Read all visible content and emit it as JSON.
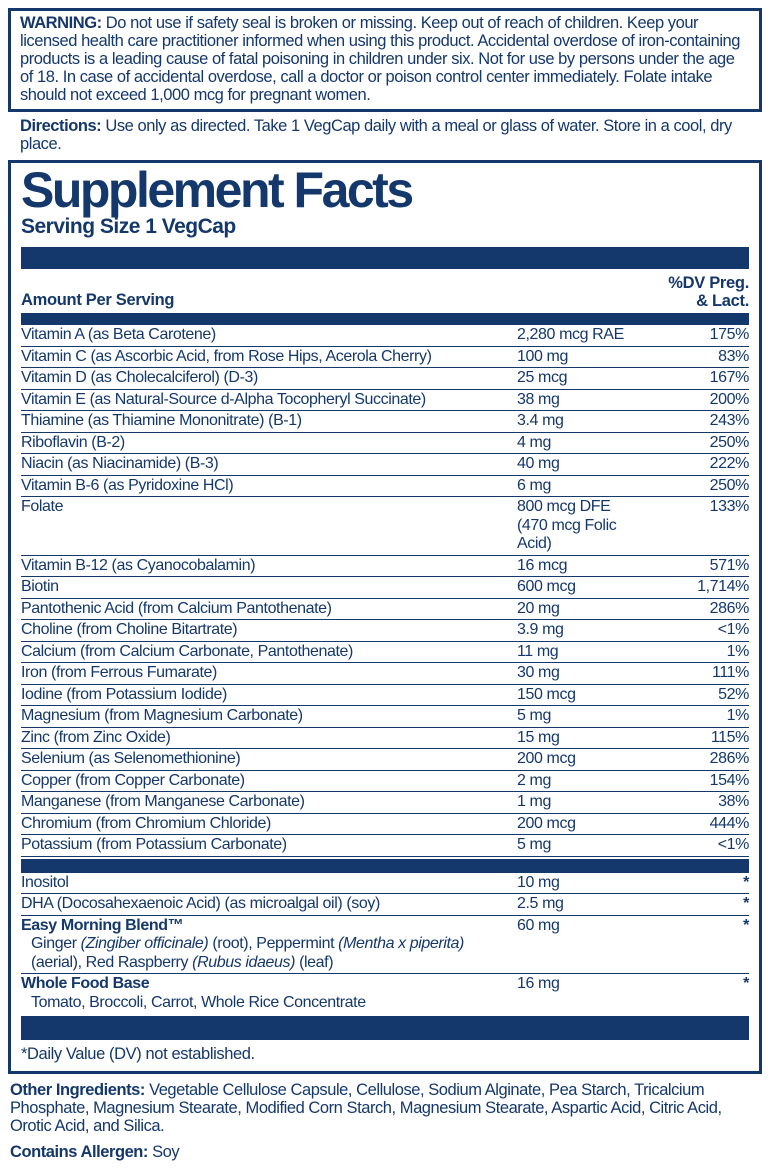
{
  "colors": {
    "navy": "#14386B"
  },
  "warning": {
    "label": "WARNING:",
    "text": "Do not use if safety seal is broken or missing. Keep out of reach of children. Keep your licensed health care practitioner informed when using this product. Accidental overdose of iron-containing products is a leading cause of fatal poisoning in children under six. Not for use by persons under the age of 18. In case of accidental overdose, call a doctor or poison control center immediately. Folate intake should not exceed 1,000 mcg for pregnant women."
  },
  "directions": {
    "label": "Directions:",
    "text": "Use only as directed. Take 1 VegCap daily with a meal or glass of water. Store in a cool, dry place."
  },
  "panel": {
    "title": "Supplement Facts",
    "serving_size": "Serving Size 1 VegCap",
    "amount_header": "Amount Per Serving",
    "dv_header_line1": "%DV Preg.",
    "dv_header_line2": "& Lact.",
    "main_rows": [
      {
        "name": "Vitamin A (as Beta Carotene)",
        "amount": "2,280 mcg RAE",
        "dv": "175%"
      },
      {
        "name": "Vitamin C (as Ascorbic Acid, from Rose Hips, Acerola Cherry)",
        "amount": "100 mg",
        "dv": "83%"
      },
      {
        "name": "Vitamin D (as Cholecalciferol) (D-3)",
        "amount": "25 mcg",
        "dv": "167%"
      },
      {
        "name": "Vitamin E (as Natural-Source d-Alpha Tocopheryl Succinate)",
        "amount": "38 mg",
        "dv": "200%"
      },
      {
        "name": "Thiamine (as Thiamine Mononitrate) (B-1)",
        "amount": "3.4 mg",
        "dv": "243%"
      },
      {
        "name": "Riboflavin (B-2)",
        "amount": "4 mg",
        "dv": "250%"
      },
      {
        "name": "Niacin (as Niacinamide) (B-3)",
        "amount": "40 mg",
        "dv": "222%"
      },
      {
        "name": "Vitamin B-6 (as Pyridoxine HCl)",
        "amount": "6 mg",
        "dv": "250%"
      },
      {
        "name": "Folate",
        "amount": "800 mcg DFE",
        "amount2": "(470 mcg Folic Acid)",
        "dv": "133%"
      },
      {
        "name": "Vitamin B-12 (as Cyanocobalamin)",
        "amount": "16 mcg",
        "dv": "571%"
      },
      {
        "name": "Biotin",
        "amount": "600 mcg",
        "dv": "1,714%"
      },
      {
        "name": "Pantothenic Acid (from Calcium Pantothenate)",
        "amount": "20 mg",
        "dv": "286%"
      },
      {
        "name": "Choline (from Choline Bitartrate)",
        "amount": "3.9 mg",
        "dv": "<1%"
      },
      {
        "name": "Calcium (from Calcium Carbonate, Pantothenate)",
        "amount": "11 mg",
        "dv": "1%"
      },
      {
        "name": "Iron (from Ferrous Fumarate)",
        "amount": "30 mg",
        "dv": "111%"
      },
      {
        "name": "Iodine (from Potassium Iodide)",
        "amount": "150 mcg",
        "dv": "52%"
      },
      {
        "name": "Magnesium (from Magnesium Carbonate)",
        "amount": "5 mg",
        "dv": "1%"
      },
      {
        "name": "Zinc (from Zinc Oxide)",
        "amount": "15 mg",
        "dv": "115%"
      },
      {
        "name": "Selenium (as Selenomethionine)",
        "amount": "200 mcg",
        "dv": "286%"
      },
      {
        "name": "Copper (from Copper Carbonate)",
        "amount": "2 mg",
        "dv": "154%"
      },
      {
        "name": "Manganese (from Manganese Carbonate)",
        "amount": "1 mg",
        "dv": "38%"
      },
      {
        "name": "Chromium (from Chromium Chloride)",
        "amount": "200 mcg",
        "dv": "444%"
      },
      {
        "name": "Potassium (from Potassium Carbonate)",
        "amount": "5 mg",
        "dv": "<1%"
      }
    ],
    "other_rows": [
      {
        "name": "Inositol",
        "amount": "10 mg",
        "dv": "*"
      },
      {
        "name": "DHA (Docosahexaenoic Acid) (as microalgal oil) (soy)",
        "amount": "2.5 mg",
        "dv": "*"
      },
      {
        "name": "Easy Morning Blend™",
        "bold": true,
        "amount": "60 mg",
        "dv": "*",
        "sub": [
          {
            "t": "Ginger ",
            "i": false
          },
          {
            "t": "(Zingiber officinale)",
            "i": true
          },
          {
            "t": " (root), Peppermint ",
            "i": false
          },
          {
            "t": "(Mentha x piperita)",
            "i": true
          },
          {
            "t": " (aerial), Red Raspberry ",
            "i": false
          },
          {
            "t": "(Rubus idaeus)",
            "i": true
          },
          {
            "t": " (leaf)",
            "i": false
          }
        ]
      },
      {
        "name": "Whole Food Base",
        "bold": true,
        "amount": "16 mg",
        "dv": "*",
        "sub": [
          {
            "t": "Tomato, Broccoli, Carrot, Whole Rice Concentrate",
            "i": false
          }
        ]
      }
    ],
    "footnote": "*Daily Value (DV) not established."
  },
  "other_ingredients": {
    "label": "Other Ingredients:",
    "text": "Vegetable Cellulose Capsule, Cellulose, Sodium Alginate, Pea Starch, Tricalcium Phosphate, Magnesium Stearate, Modified Corn Starch, Magnesium Stearate, Aspartic Acid, Citric Acid, Orotic Acid, and Silica."
  },
  "allergen": {
    "label": "Contains Allergen:",
    "text": "Soy"
  }
}
